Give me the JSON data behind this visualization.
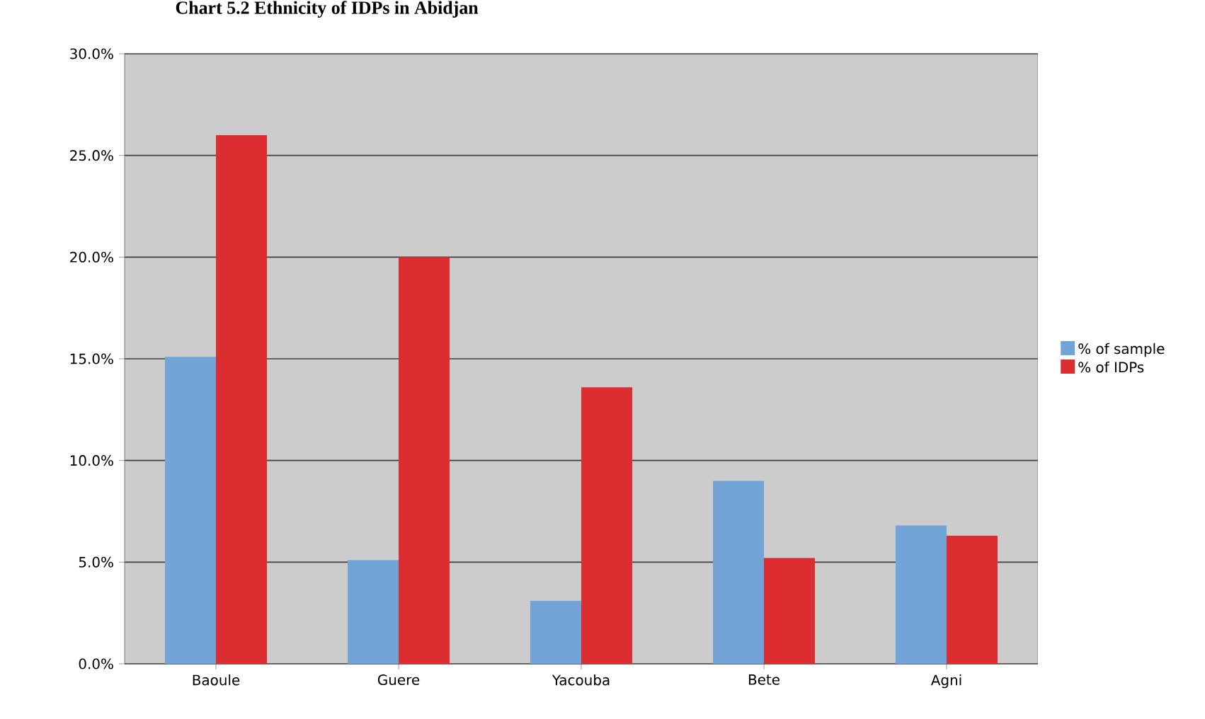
{
  "chart_data": {
    "type": "bar",
    "title": "Chart 5.2 Ethnicity of IDPs in Abidjan",
    "categories": [
      "Baoule",
      "Guere",
      "Yacouba",
      "Bete",
      "Agni"
    ],
    "series": [
      {
        "name": "% of sample",
        "color": "#72a4d8",
        "values": [
          15.1,
          5.1,
          3.1,
          9.0,
          6.8
        ]
      },
      {
        "name": "% of IDPs",
        "color": "#dc2d30",
        "values": [
          26.0,
          20.0,
          13.6,
          5.2,
          6.3
        ]
      }
    ],
    "ylim": [
      0,
      30
    ],
    "yticks": [
      {
        "value": 0,
        "label": "0.0%"
      },
      {
        "value": 5,
        "label": "5.0%"
      },
      {
        "value": 10,
        "label": "10.0%"
      },
      {
        "value": 15,
        "label": "15.0%"
      },
      {
        "value": 20,
        "label": "20.0%"
      },
      {
        "value": 25,
        "label": "25.0%"
      },
      {
        "value": 30,
        "label": "30.0%"
      }
    ],
    "grid": "y",
    "legend": "right"
  }
}
